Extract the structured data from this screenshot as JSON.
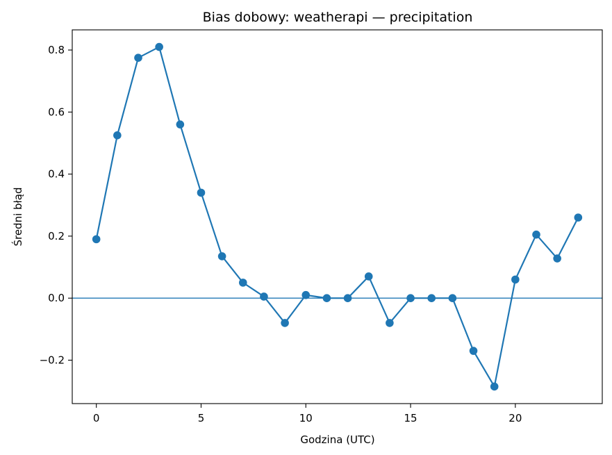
{
  "chart_data": {
    "type": "line",
    "title": "Bias dobowy: weatherapi — precipitation",
    "xlabel": "Godzina (UTC)",
    "ylabel": "Średni błąd",
    "xlim": [
      -1.15,
      24.15
    ],
    "ylim": [
      -0.34,
      0.865
    ],
    "xticks": [
      0,
      5,
      10,
      15,
      20
    ],
    "xtick_labels": [
      "0",
      "5",
      "10",
      "15",
      "20"
    ],
    "yticks": [
      -0.2,
      0.0,
      0.2,
      0.4,
      0.6,
      0.8
    ],
    "ytick_labels": [
      "−0.2",
      "0.0",
      "0.2",
      "0.4",
      "0.6",
      "0.8"
    ],
    "reference_line_y": 0,
    "grid": false,
    "colors": {
      "series": "#1f77b4",
      "reference": "#1f77b4"
    },
    "series": [
      {
        "x": [
          0,
          1,
          2,
          3,
          4,
          5,
          6,
          7,
          8,
          9,
          10,
          11,
          12,
          13,
          14,
          15,
          16,
          17,
          18,
          19,
          20,
          21,
          22,
          23
        ],
        "values": [
          0.19,
          0.525,
          0.775,
          0.81,
          0.56,
          0.34,
          0.135,
          0.05,
          0.005,
          -0.08,
          0.01,
          0.0,
          0.0,
          0.07,
          -0.08,
          0.0,
          0.0,
          0.0,
          -0.17,
          -0.285,
          0.06,
          0.205,
          0.128,
          0.26
        ]
      }
    ]
  }
}
